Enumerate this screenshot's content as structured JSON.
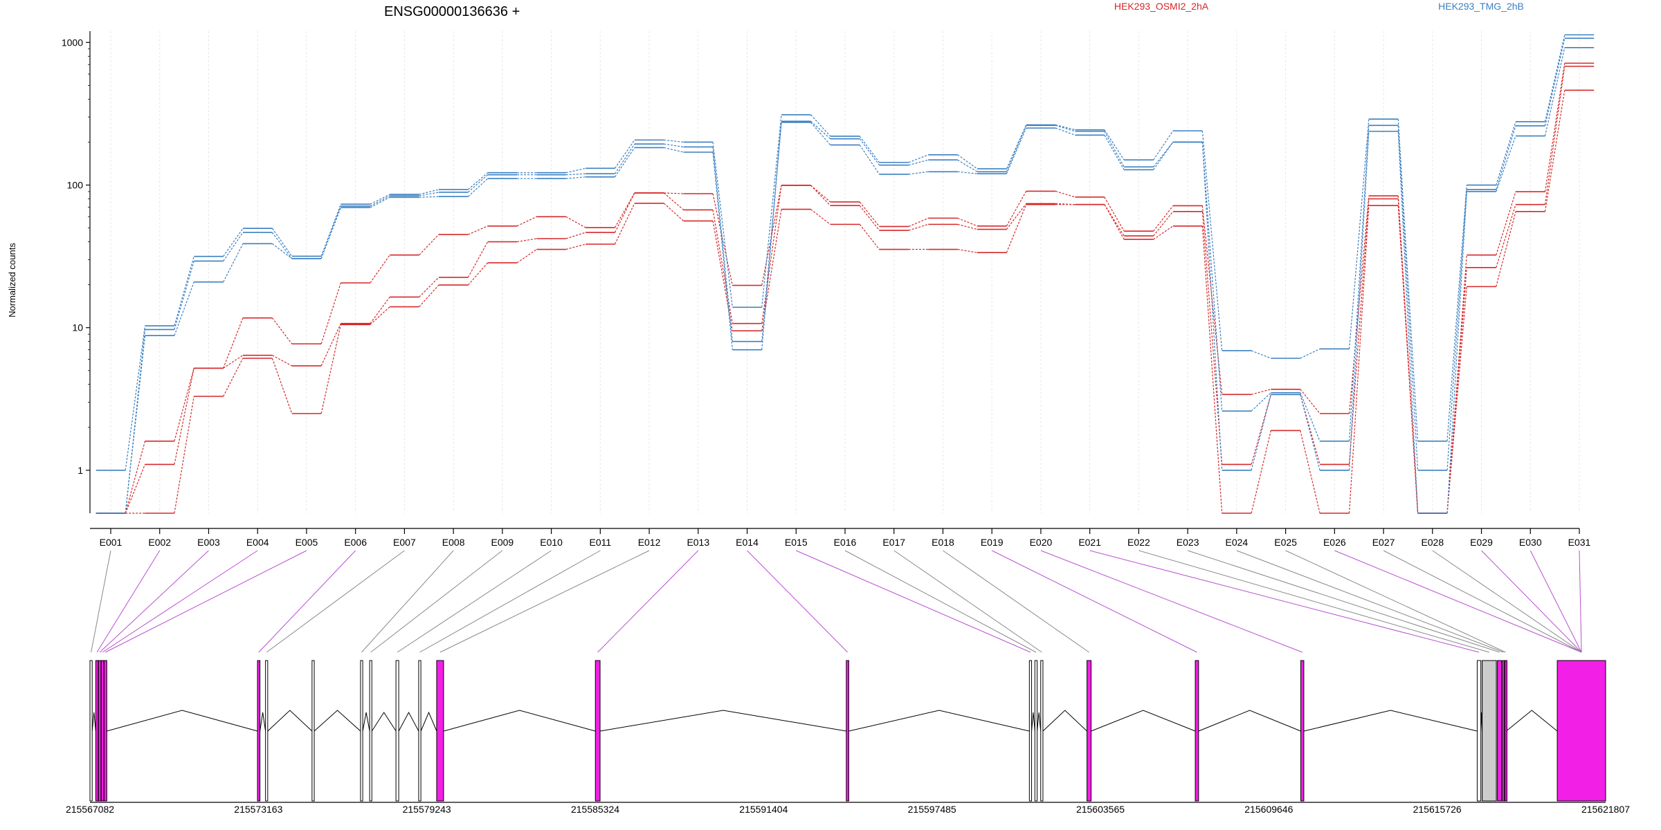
{
  "title": "ENSG00000136636 +",
  "legend": [
    {
      "name": "HEK293_OSMI2_2hA",
      "color": "#d62728"
    },
    {
      "name": "HEK293_TMG_2hB",
      "color": "#3a7fc1"
    }
  ],
  "colors": {
    "red": "#d62728",
    "blue": "#3a7fc1",
    "exon_highlight": "#f21fe6",
    "exon_plain": "#cccccc",
    "connector_highlight": "#b94fd0",
    "connector_plain": "#888888"
  },
  "chart_data": {
    "type": "line",
    "title": "ENSG00000136636 +",
    "ylabel": "Normalized counts",
    "xlabel": "",
    "yscale": "log",
    "ylim": [
      0.5,
      1200
    ],
    "yticks": [
      "1",
      "10",
      "100",
      "1000"
    ],
    "categories": [
      "E001",
      "E002",
      "E003",
      "E004",
      "E005",
      "E006",
      "E007",
      "E008",
      "E009",
      "E010",
      "E011",
      "E012",
      "E013",
      "E014",
      "E015",
      "E016",
      "E017",
      "E018",
      "E019",
      "E020",
      "E021",
      "E022",
      "E023",
      "E024",
      "E025",
      "E026",
      "E027",
      "E028",
      "E029",
      "E030",
      "E031"
    ],
    "series": [
      {
        "name": "HEK293_OSMI2_2hA",
        "color": "#d62728",
        "values": [
          0.5,
          1.6,
          5.2,
          11.7,
          7.7,
          20.6,
          32.3,
          45,
          51.6,
          60,
          50.3,
          88,
          87,
          19.8,
          99.5,
          76.1,
          51.2,
          58.6,
          51.6,
          90.5,
          82.3,
          47.5,
          71.6,
          3.4,
          3.7,
          2.5,
          84,
          0.5,
          32.3,
          89.8,
          715
        ]
      },
      {
        "name": "HEK293_OSMI2_2hA",
        "color": "#d62728",
        "values": [
          0.5,
          1.1,
          5.2,
          6.4,
          5.4,
          10.7,
          16.4,
          22.5,
          40,
          42.1,
          46.5,
          88,
          67,
          10.7,
          99.5,
          71.8,
          48.1,
          53,
          48.9,
          74.1,
          73,
          44,
          65.2,
          1.1,
          3.4,
          1.1,
          80,
          0.5,
          26.4,
          73,
          680
        ]
      },
      {
        "name": "HEK293_OSMI2_2hA",
        "color": "#d62728",
        "values": [
          0.5,
          0.5,
          3.3,
          6.1,
          2.5,
          10.5,
          14,
          19.9,
          28.5,
          35.4,
          38.5,
          74.5,
          56,
          9.5,
          67.6,
          53,
          35.4,
          35.4,
          33.6,
          73,
          73,
          41.6,
          51.6,
          0.5,
          1.9,
          0.5,
          71.8,
          0.5,
          19.4,
          65.2,
          462
        ]
      },
      {
        "name": "HEK293_TMG_2hB",
        "color": "#3a7fc1",
        "values": [
          1,
          10.3,
          31.6,
          49.7,
          31.7,
          73.4,
          86,
          93,
          122,
          122,
          131,
          207,
          200,
          13.9,
          311,
          220,
          144,
          163,
          130,
          264,
          244,
          150,
          240,
          6.9,
          6.1,
          7.1,
          290,
          1.6,
          100,
          278,
          1130
        ]
      },
      {
        "name": "HEK293_TMG_2hB",
        "color": "#3a7fc1",
        "values": [
          0.5,
          9.7,
          29.3,
          46.5,
          30.5,
          71.2,
          84,
          89,
          118,
          118,
          120,
          194,
          185,
          8,
          280,
          211,
          138,
          150,
          124,
          262,
          238,
          134,
          200,
          2.6,
          3.5,
          1.6,
          262,
          1,
          93,
          260,
          1070
        ]
      },
      {
        "name": "HEK293_TMG_2hB",
        "color": "#3a7fc1",
        "values": [
          0.5,
          8.8,
          20.9,
          38.8,
          30.5,
          69.5,
          82,
          83,
          111,
          111,
          114,
          183,
          170,
          7,
          275,
          191,
          119,
          124,
          120,
          251,
          224,
          128,
          200,
          1,
          3.4,
          1,
          238,
          0.5,
          90,
          221,
          920
        ]
      }
    ]
  },
  "genome_axis": {
    "tick_labels": [
      "215567082",
      "215573163",
      "215579243",
      "215585324",
      "215591404",
      "215597485",
      "215603565",
      "215609646",
      "215615726",
      "215621807"
    ]
  }
}
